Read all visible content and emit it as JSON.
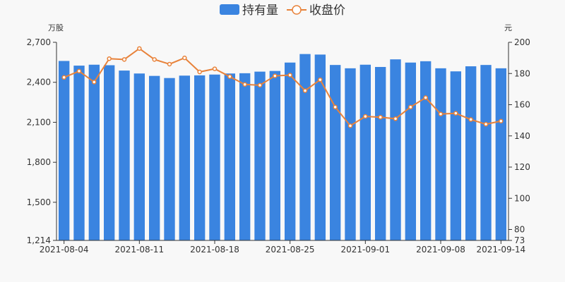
{
  "chart_data": {
    "type": "bar",
    "categories": [
      "2021-08-04",
      "2021-08-05",
      "2021-08-06",
      "2021-08-09",
      "2021-08-10",
      "2021-08-11",
      "2021-08-12",
      "2021-08-13",
      "2021-08-16",
      "2021-08-17",
      "2021-08-18",
      "2021-08-19",
      "2021-08-20",
      "2021-08-23",
      "2021-08-24",
      "2021-08-25",
      "2021-08-26",
      "2021-08-27",
      "2021-08-30",
      "2021-08-31",
      "2021-09-01",
      "2021-09-02",
      "2021-09-03",
      "2021-09-06",
      "2021-09-07",
      "2021-09-08",
      "2021-09-09",
      "2021-09-10",
      "2021-09-13",
      "2021-09-14"
    ],
    "x_tick_labels": [
      "2021-08-04",
      "2021-08-11",
      "2021-08-18",
      "2021-08-25",
      "2021-09-01",
      "2021-09-08",
      "2021-09-14"
    ],
    "series": [
      {
        "name": "持有量",
        "type": "bar",
        "axis": "left",
        "color": "#3a84e0",
        "values": [
          2560,
          2525,
          2532,
          2528,
          2488,
          2466,
          2448,
          2432,
          2450,
          2452,
          2458,
          2466,
          2468,
          2480,
          2485,
          2548,
          2612,
          2608,
          2530,
          2505,
          2532,
          2515,
          2572,
          2548,
          2558,
          2505,
          2482,
          2520,
          2530,
          2505
        ]
      },
      {
        "name": "收盘价",
        "type": "line",
        "axis": "right",
        "color": "#e8823a",
        "values": [
          177.5,
          181.5,
          174.5,
          189.5,
          189,
          196,
          189,
          186,
          190,
          181,
          183,
          178,
          173,
          172.5,
          178.5,
          179,
          169,
          176,
          158.5,
          146.5,
          152.5,
          152,
          151,
          158.5,
          164.5,
          154,
          154.5,
          150.5,
          147.5,
          149.5
        ]
      }
    ],
    "y_left": {
      "unit": "万股",
      "min": 1214,
      "max": 2700,
      "ticks": [
        "1,214",
        "1,500",
        "1,800",
        "2,100",
        "2,400",
        "2,700"
      ],
      "tick_values": [
        1214,
        1500,
        1800,
        2100,
        2400,
        2700
      ]
    },
    "y_right": {
      "unit": "元",
      "min": 73,
      "max": 200,
      "ticks": [
        "73",
        "80",
        "100",
        "120",
        "140",
        "160",
        "180",
        "200"
      ],
      "tick_values": [
        73,
        80,
        100,
        120,
        140,
        160,
        180,
        200
      ]
    },
    "legend": {
      "position": "top-center",
      "items": [
        "持有量",
        "收盘价"
      ]
    },
    "grid": false,
    "colors": {
      "background": "#f8f8f8",
      "axis": "#333333",
      "marker_fill": "#ffffff"
    }
  }
}
